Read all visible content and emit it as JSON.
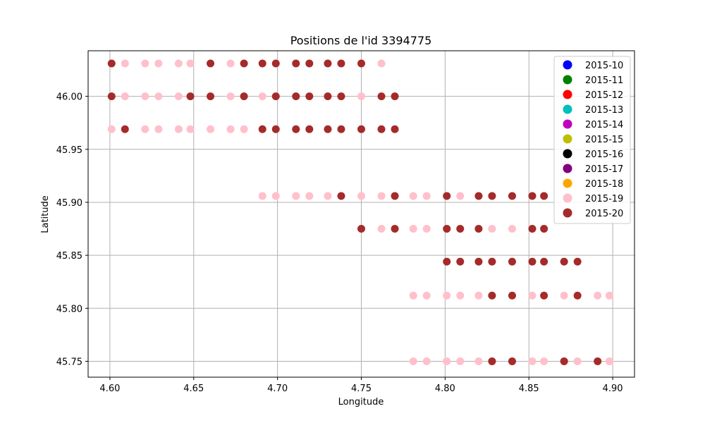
{
  "chart_data": {
    "type": "scatter",
    "title": "Positions de l'id 3394775",
    "xlabel": "Longitude",
    "ylabel": "Latitude",
    "xlim": [
      4.587,
      4.913
    ],
    "ylim": [
      45.735,
      46.043
    ],
    "xticks": [
      4.6,
      4.65,
      4.7,
      4.75,
      4.8,
      4.85,
      4.9
    ],
    "xtick_labels": [
      "4.60",
      "4.65",
      "4.70",
      "4.75",
      "4.80",
      "4.85",
      "4.90"
    ],
    "yticks": [
      45.75,
      45.8,
      45.85,
      45.9,
      45.95,
      46.0
    ],
    "ytick_labels": [
      "45.75",
      "45.80",
      "45.85",
      "45.90",
      "45.95",
      "46.00"
    ],
    "grid": true,
    "legend_position": "top-right",
    "legend": [
      {
        "label": "2015-10",
        "color": "#0000ff"
      },
      {
        "label": "2015-11",
        "color": "#008000"
      },
      {
        "label": "2015-12",
        "color": "#ff0000"
      },
      {
        "label": "2015-13",
        "color": "#00bfbf"
      },
      {
        "label": "2015-14",
        "color": "#bf00bf"
      },
      {
        "label": "2015-15",
        "color": "#bfbf00"
      },
      {
        "label": "2015-16",
        "color": "#000000"
      },
      {
        "label": "2015-17",
        "color": "#800080"
      },
      {
        "label": "2015-18",
        "color": "#ffa500"
      },
      {
        "label": "2015-19",
        "color": "#ffc0cb"
      },
      {
        "label": "2015-20",
        "color": "#a52a2a"
      }
    ],
    "series": [
      {
        "name": "2015-19",
        "color": "#ffc0cb",
        "points": [
          [
            4.609,
            46.031
          ],
          [
            4.621,
            46.031
          ],
          [
            4.629,
            46.031
          ],
          [
            4.641,
            46.031
          ],
          [
            4.648,
            46.031
          ],
          [
            4.672,
            46.031
          ],
          [
            4.762,
            46.031
          ],
          [
            4.609,
            46.0
          ],
          [
            4.621,
            46.0
          ],
          [
            4.629,
            46.0
          ],
          [
            4.641,
            46.0
          ],
          [
            4.672,
            46.0
          ],
          [
            4.691,
            46.0
          ],
          [
            4.75,
            46.0
          ],
          [
            4.601,
            45.969
          ],
          [
            4.621,
            45.969
          ],
          [
            4.629,
            45.969
          ],
          [
            4.641,
            45.969
          ],
          [
            4.648,
            45.969
          ],
          [
            4.66,
            45.969
          ],
          [
            4.672,
            45.969
          ],
          [
            4.68,
            45.969
          ],
          [
            4.691,
            45.906
          ],
          [
            4.699,
            45.906
          ],
          [
            4.711,
            45.906
          ],
          [
            4.719,
            45.906
          ],
          [
            4.73,
            45.906
          ],
          [
            4.75,
            45.906
          ],
          [
            4.762,
            45.906
          ],
          [
            4.781,
            45.906
          ],
          [
            4.789,
            45.906
          ],
          [
            4.809,
            45.906
          ],
          [
            4.762,
            45.875
          ],
          [
            4.781,
            45.875
          ],
          [
            4.789,
            45.875
          ],
          [
            4.828,
            45.875
          ],
          [
            4.84,
            45.875
          ],
          [
            4.781,
            45.812
          ],
          [
            4.789,
            45.812
          ],
          [
            4.801,
            45.812
          ],
          [
            4.809,
            45.812
          ],
          [
            4.82,
            45.812
          ],
          [
            4.852,
            45.812
          ],
          [
            4.871,
            45.812
          ],
          [
            4.891,
            45.812
          ],
          [
            4.898,
            45.812
          ],
          [
            4.781,
            45.75
          ],
          [
            4.789,
            45.75
          ],
          [
            4.801,
            45.75
          ],
          [
            4.809,
            45.75
          ],
          [
            4.82,
            45.75
          ],
          [
            4.852,
            45.75
          ],
          [
            4.859,
            45.75
          ],
          [
            4.879,
            45.75
          ],
          [
            4.898,
            45.75
          ]
        ]
      },
      {
        "name": "2015-20",
        "color": "#a52a2a",
        "points": [
          [
            4.601,
            46.031
          ],
          [
            4.66,
            46.031
          ],
          [
            4.68,
            46.031
          ],
          [
            4.691,
            46.031
          ],
          [
            4.699,
            46.031
          ],
          [
            4.711,
            46.031
          ],
          [
            4.719,
            46.031
          ],
          [
            4.73,
            46.031
          ],
          [
            4.738,
            46.031
          ],
          [
            4.75,
            46.031
          ],
          [
            4.601,
            46.0
          ],
          [
            4.648,
            46.0
          ],
          [
            4.66,
            46.0
          ],
          [
            4.68,
            46.0
          ],
          [
            4.699,
            46.0
          ],
          [
            4.711,
            46.0
          ],
          [
            4.719,
            46.0
          ],
          [
            4.73,
            46.0
          ],
          [
            4.738,
            46.0
          ],
          [
            4.762,
            46.0
          ],
          [
            4.77,
            46.0
          ],
          [
            4.609,
            45.969
          ],
          [
            4.691,
            45.969
          ],
          [
            4.699,
            45.969
          ],
          [
            4.711,
            45.969
          ],
          [
            4.719,
            45.969
          ],
          [
            4.73,
            45.969
          ],
          [
            4.738,
            45.969
          ],
          [
            4.75,
            45.969
          ],
          [
            4.762,
            45.969
          ],
          [
            4.77,
            45.969
          ],
          [
            4.738,
            45.906
          ],
          [
            4.77,
            45.906
          ],
          [
            4.801,
            45.906
          ],
          [
            4.82,
            45.906
          ],
          [
            4.828,
            45.906
          ],
          [
            4.84,
            45.906
          ],
          [
            4.852,
            45.906
          ],
          [
            4.859,
            45.906
          ],
          [
            4.75,
            45.875
          ],
          [
            4.77,
            45.875
          ],
          [
            4.801,
            45.875
          ],
          [
            4.809,
            45.875
          ],
          [
            4.82,
            45.875
          ],
          [
            4.852,
            45.875
          ],
          [
            4.859,
            45.875
          ],
          [
            4.801,
            45.844
          ],
          [
            4.809,
            45.844
          ],
          [
            4.82,
            45.844
          ],
          [
            4.828,
            45.844
          ],
          [
            4.84,
            45.844
          ],
          [
            4.852,
            45.844
          ],
          [
            4.859,
            45.844
          ],
          [
            4.871,
            45.844
          ],
          [
            4.879,
            45.844
          ],
          [
            4.828,
            45.812
          ],
          [
            4.84,
            45.812
          ],
          [
            4.859,
            45.812
          ],
          [
            4.879,
            45.812
          ],
          [
            4.828,
            45.75
          ],
          [
            4.84,
            45.75
          ],
          [
            4.871,
            45.75
          ],
          [
            4.891,
            45.75
          ]
        ]
      }
    ]
  }
}
